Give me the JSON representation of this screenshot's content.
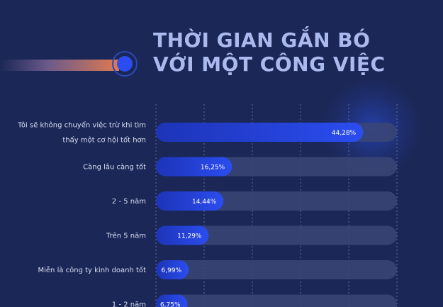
{
  "title": {
    "line1": "THỜI GIAN GẮN BÓ",
    "line2": "VỚI MỘT CÔNG VIỆC"
  },
  "colors": {
    "background": "#1b2757",
    "bar_fill": "#2b4df0",
    "bar_track": "#3a4676",
    "gridline": "#9aa6cc",
    "accent_orange": "#e07a50"
  },
  "chart_data": {
    "type": "bar",
    "orientation": "horizontal",
    "title": "THỜI GIAN GẮN BÓ VỚI MỘT CÔNG VIỆC",
    "categories": [
      [
        "Tôi sẽ không chuyển việc trừ khi tìm",
        "thấy một cơ hội tốt hơn"
      ],
      [
        "Càng lâu càng tốt"
      ],
      [
        "2 - 5 năm"
      ],
      [
        "Trên 5 năm"
      ],
      [
        "Miễn là công ty kinh doanh tốt"
      ],
      [
        "1 - 2 năm"
      ]
    ],
    "values": [
      44.28,
      16.25,
      14.44,
      11.29,
      6.99,
      6.75
    ],
    "value_labels": [
      "44,28%",
      "16,25%",
      "14,44%",
      "11,29%",
      "6,99%",
      "6,75%"
    ],
    "xlim": [
      0,
      50
    ],
    "grid": true
  }
}
